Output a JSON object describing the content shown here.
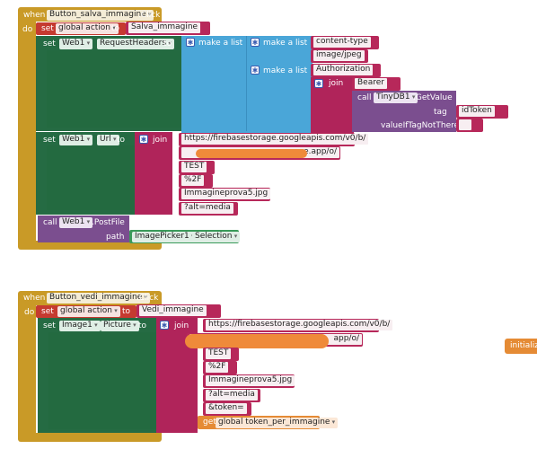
{
  "block1": {
    "when_kw": "when",
    "component": "Button_salva_immagine",
    "event": ".Click",
    "do_kw": "do",
    "set_kw": "set",
    "var": "global action",
    "to_kw": "to",
    "action_value": "Salva_immagine",
    "set2_kw": "set",
    "web1": "Web1",
    "prop_headers": "RequestHeaders",
    "to2_kw": "to",
    "make_list_1": "make a list",
    "make_list_2": "make a list",
    "content_type": "content-type",
    "image_jpeg": "image/jpeg",
    "make_list_3": "make a list",
    "authorization": "Authorization",
    "join_kw": "join",
    "bearer": "Bearer",
    "call_kw": "call",
    "tinydb": "TinyDB1",
    "getvalue": ".GetValue",
    "tag_kw": "tag",
    "idtoken": "idToken",
    "valueif_kw": "valueIfTagNotThere",
    "empty_str": "",
    "set3_kw": "set",
    "web1b": "Web1",
    "prop_url": "Url",
    "to3_kw": "to",
    "join2_kw": "join",
    "url1": "https://firebasestorage.googleapis.com/v0/b/",
    "url2_suffix": "ge.app/o/",
    "test": "TEST",
    "pct2f": "%2F",
    "file": "Immagineprova5.jpg",
    "alt": "?alt=media",
    "call2_kw": "call",
    "web1c": "Web1",
    "postfile": ".PostFile",
    "path_kw": "path",
    "imagepicker": "ImagePicker1",
    "selection": "Selection"
  },
  "block2": {
    "when_kw": "when",
    "component": "Button_vedi_immagine",
    "event": ".Click",
    "do_kw": "do",
    "set_kw": "set",
    "var": "global action",
    "to_kw": "to",
    "action_value": "Vedi_immagine",
    "set2_kw": "set",
    "image1": "Image1",
    "prop_picture": "Picture",
    "to2_kw": "to",
    "join_kw": "join",
    "url1": "https://firebasestorage.googleapis.com/v0/b/",
    "url2_suffix": "app/o/",
    "test": "TEST",
    "pct2f": "%2F",
    "file": "Immagineprova5.jpg",
    "alt": "?alt=media",
    "token": "&token=",
    "get_kw": "get",
    "get_var": "global token_per_immagine"
  },
  "stray": {
    "label": "initialize"
  },
  "colors": {
    "event": "#c99a27",
    "set_var": "#c53a30",
    "component_setter": "#256b43",
    "list": "#4aa6d8",
    "text": "#b0245a",
    "call": "#7b4e8f",
    "getter": "#e58b35",
    "scribble": "#ef8a3a"
  }
}
